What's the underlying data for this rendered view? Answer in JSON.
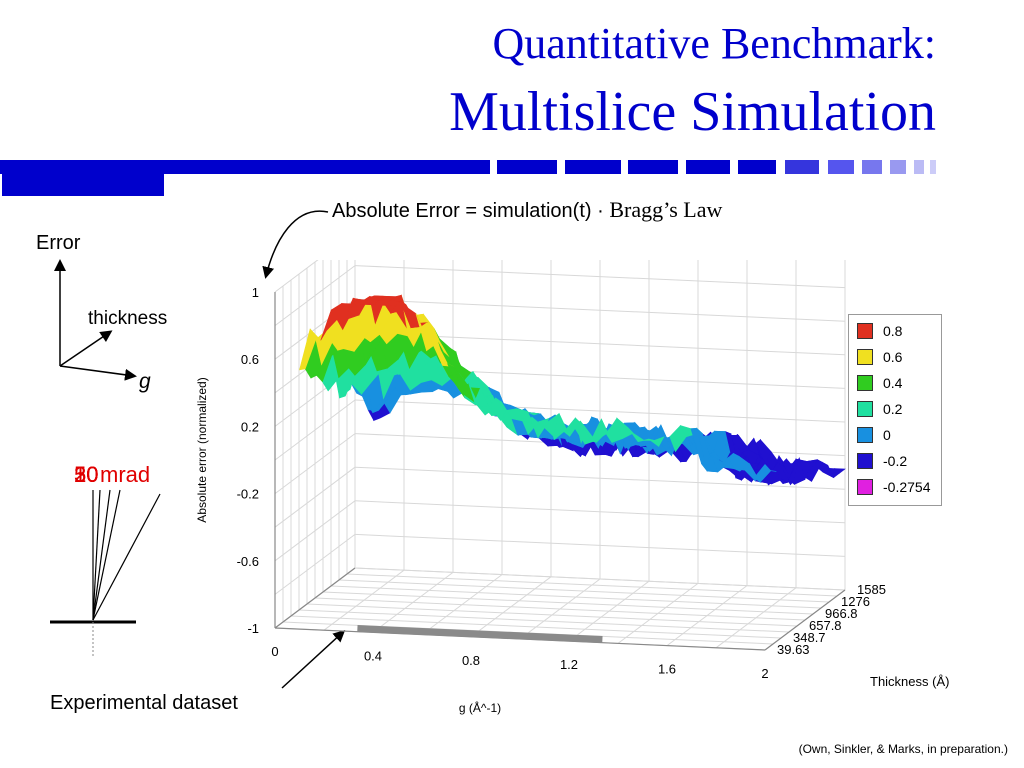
{
  "slide": {
    "title_line1": "Quantitative Benchmark:",
    "title_line2": "Multislice Simulation",
    "formula_text": "Absolute Error = simulation(t) · ",
    "formula_law": "Bragg’s Law",
    "axes_sketch": {
      "error": "Error",
      "thickness": "thickness",
      "g": "g"
    },
    "mrad_labels": [
      "10",
      "20",
      "30",
      "50",
      "mrad"
    ],
    "experimental_label": "Experimental dataset",
    "citation": "(Own, Sinkler, & Marks, in preparation.)"
  },
  "colors": {
    "title": "#0000cc",
    "accent_bar": "#0000cc",
    "mrad_text": "#e00000"
  },
  "chart_data": {
    "type": "surface3d",
    "zlabel": "Absolute error (normalized)",
    "xlabel": "g (Å^-1)",
    "ylabel": "Thickness (Å)",
    "z_ticks": [
      "1",
      "0.6",
      "0.2",
      "-0.2",
      "-0.6",
      "-1"
    ],
    "zlim": [
      -1,
      1
    ],
    "x_ticks": [
      "0",
      "0.4",
      "0.8",
      "1.2",
      "1.6",
      "2"
    ],
    "xlim": [
      0,
      2
    ],
    "y_ticks": [
      "39.63",
      "348.7",
      "657.8",
      "966.8",
      "1276",
      "1585"
    ],
    "ylim": [
      39.63,
      1585
    ],
    "legend": [
      {
        "label": "0.8",
        "color": "#e03020"
      },
      {
        "label": "0.6",
        "color": "#f0e020"
      },
      {
        "label": "0.4",
        "color": "#30cc20"
      },
      {
        "label": "0.2",
        "color": "#20e0a0"
      },
      {
        "label": "0",
        "color": "#1890e0"
      },
      {
        "label": "-0.2",
        "color": "#2010d0"
      },
      {
        "label": "-0.2754",
        "color": "#e020e0"
      }
    ],
    "legend_position": "right",
    "grid": true
  }
}
